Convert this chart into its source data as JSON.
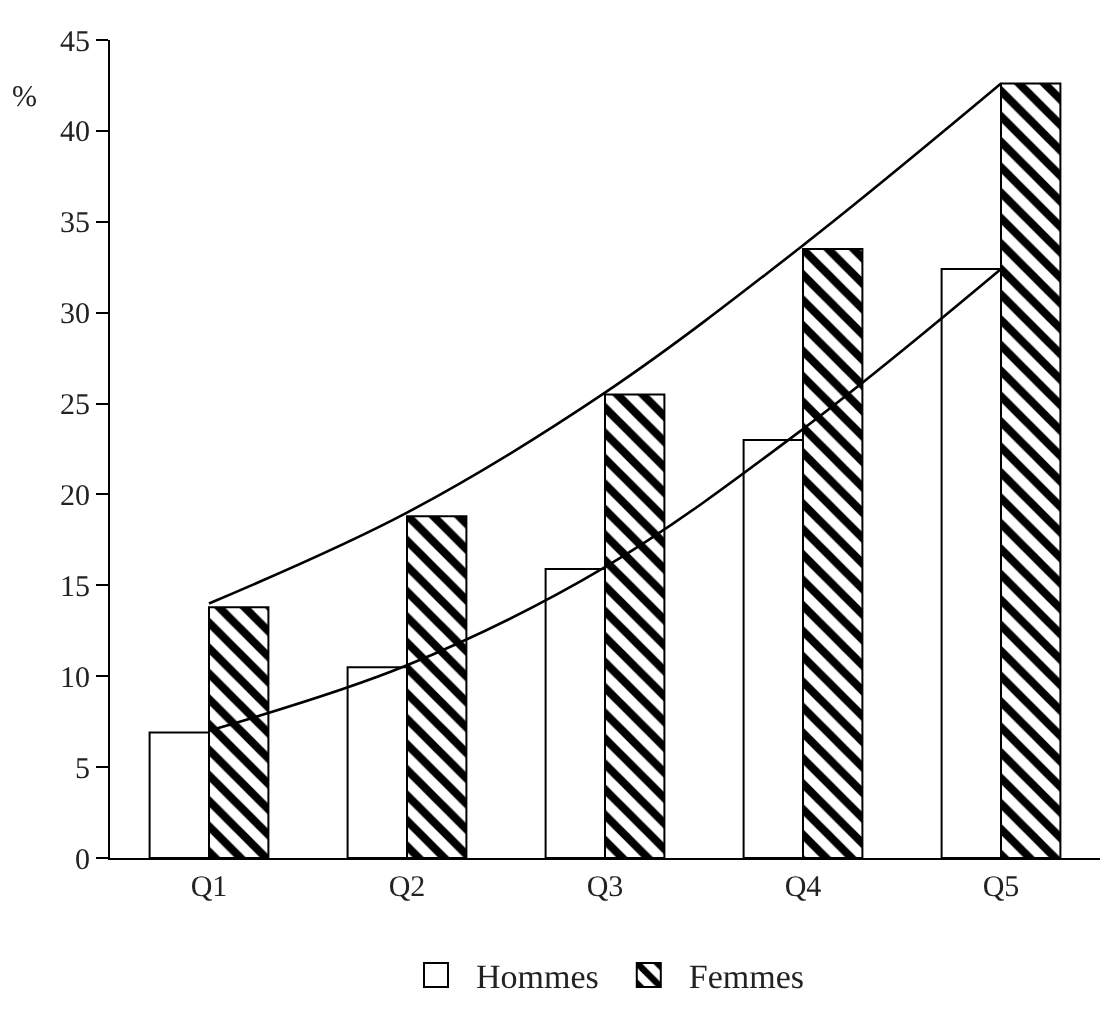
{
  "chart_data": {
    "type": "bar",
    "ylabel": "%",
    "categories": [
      "Q1",
      "Q2",
      "Q3",
      "Q4",
      "Q5"
    ],
    "series": [
      {
        "name": "Hommes",
        "color": "#ffffff",
        "values": [
          6.9,
          10.5,
          15.9,
          23.0,
          32.4
        ]
      },
      {
        "name": "Femmes",
        "color": "#000000",
        "values": [
          13.8,
          18.8,
          25.5,
          33.5,
          42.6
        ]
      },
      {
        "type": "line",
        "color": "#000000",
        "values": [
          7.0,
          10.6,
          16.0,
          23.6,
          32.4
        ]
      },
      {
        "type": "line",
        "color": "#000000",
        "values": [
          14.0,
          19.0,
          25.6,
          33.7,
          42.6
        ]
      }
    ],
    "ylim": [
      0,
      45
    ],
    "yticks": [
      0,
      5,
      10,
      15,
      20,
      25,
      30,
      35,
      40,
      45
    ],
    "grid": false,
    "legend": "bottom",
    "line_style": "solid"
  }
}
